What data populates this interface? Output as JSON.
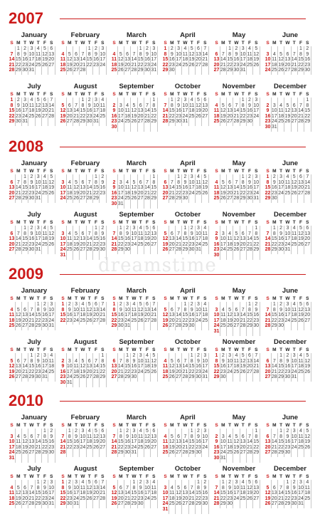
{
  "years": [
    "2007",
    "2008",
    "2009",
    "2010"
  ],
  "months": [
    "January",
    "February",
    "March",
    "April",
    "May",
    "June",
    "July",
    "August",
    "September",
    "October",
    "November",
    "December"
  ],
  "weekdays": [
    "S",
    "M",
    "T",
    "W",
    "T",
    "F",
    "S"
  ],
  "watermark": "dreamstime",
  "colors": {
    "accent": "#cc1b1b",
    "text": "#222222",
    "grid": "#c8c8c8"
  }
}
